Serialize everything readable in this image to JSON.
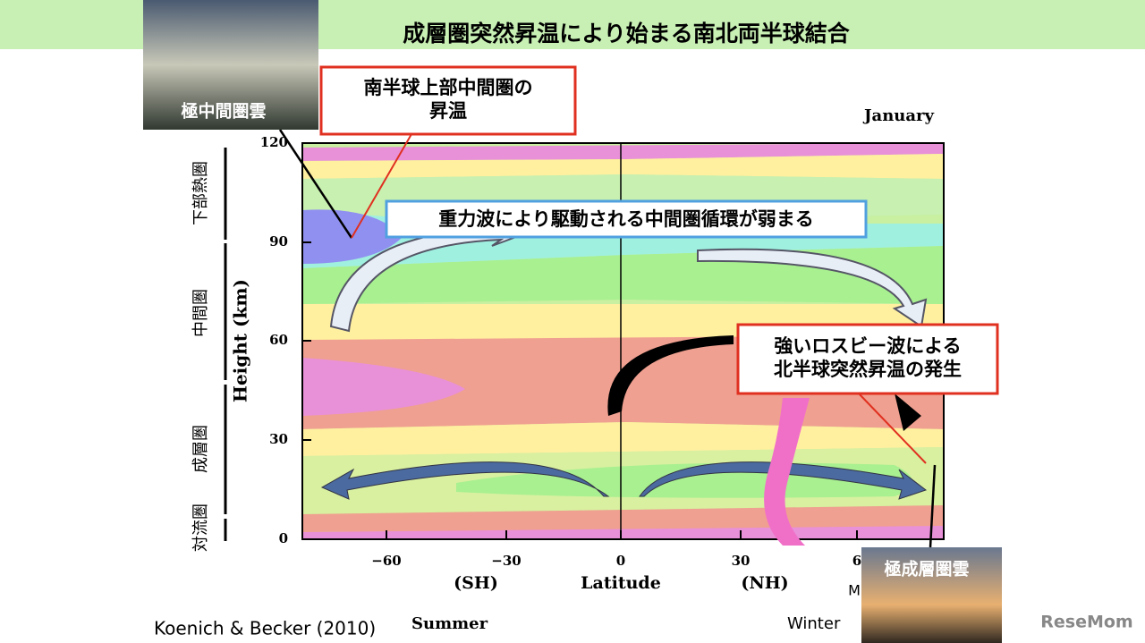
{
  "header": {
    "title": "成層圏突然昇温により始まる南北両半球結合"
  },
  "photos": {
    "top_left": "極中間圏雲",
    "bottom_right": "極成層圏雲"
  },
  "callouts": {
    "south": "南半球上部中間圏の\n昇温",
    "gravity": "重力波により駆動される中間圏循環が弱まる",
    "north": "強いロスビー波による\n北半球突然昇温の発生"
  },
  "plot": {
    "month": "January",
    "y_label": "Height (km)",
    "x_label": "Latitude",
    "sh": "(SH)",
    "nh": "(NH)",
    "yticks": [
      "120",
      "90",
      "60",
      "30",
      "0"
    ],
    "xticks": [
      "−60",
      "−30",
      "0",
      "30",
      "6"
    ],
    "m_label": "M"
  },
  "layers": [
    "下部熱圏",
    "中間圏",
    "成層圏",
    "対流圏"
  ],
  "footer": {
    "citation": "Koenich & Becker (2010)",
    "summer": "Summer",
    "winter": "Winter",
    "logo": "ReseMom"
  }
}
